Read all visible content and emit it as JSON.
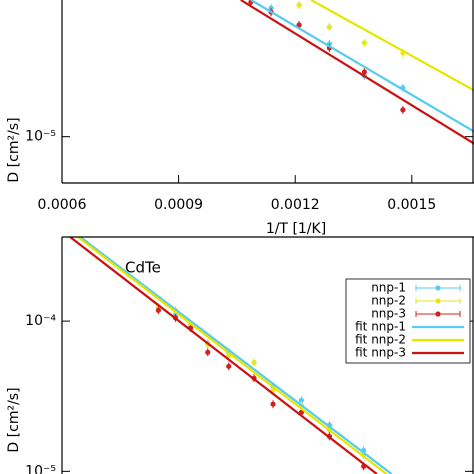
{
  "chart_data": [
    {
      "type": "scatter",
      "ylabel": "D [cm²/s]",
      "xlabel": "1/T [1/K]",
      "log_y": true,
      "xlim": [
        0.0006,
        0.00166
      ],
      "xticks": [
        0.0006,
        0.0009,
        0.0012,
        0.0015
      ],
      "ylim": [
        4.9e-06,
        8.2e-05
      ],
      "yticks": [
        {
          "value": 1e-05,
          "label": "10⁻⁵"
        }
      ],
      "series": [
        {
          "name": "nnp-1",
          "mode": "points",
          "color": "#5bc8f0",
          "x": [
            0.001138,
            0.00121,
            0.001288,
            0.001378,
            0.001477
          ],
          "values": [
            7.24e-05,
            5.58e-05,
            4.17e-05,
            2.55e-05,
            2.12e-05
          ]
        },
        {
          "name": "nnp-2",
          "mode": "points",
          "color": "#e6e620",
          "x": [
            0.00121,
            0.001288,
            0.001378,
            0.001477
          ],
          "values": [
            7.59e-05,
            5.41e-05,
            4.24e-05,
            3.63e-05
          ]
        },
        {
          "name": "nnp-3",
          "mode": "points",
          "color": "#d42020",
          "x": [
            0.001086,
            0.001138,
            0.00121,
            0.001288,
            0.001378,
            0.001477
          ],
          "values": [
            7.94e-05,
            6.81e-05,
            5.58e-05,
            3.92e-05,
            2.71e-05,
            1.51e-05
          ]
        },
        {
          "name": "fit nnp-1",
          "mode": "line",
          "color": "#55ccee",
          "x": [
            0.001086,
            0.001666
          ],
          "values": [
            8.2e-05,
            1.06e-05
          ]
        },
        {
          "name": "fit nnp-2",
          "mode": "line",
          "color": "#e6e600",
          "x": [
            0.001241,
            0.001666
          ],
          "values": [
            8.2e-05,
            2e-05
          ]
        },
        {
          "name": "fit nnp-3",
          "mode": "line",
          "color": "#cc1111",
          "x": [
            0.00106,
            0.001666
          ],
          "values": [
            8.2e-05,
            8.8e-06
          ]
        }
      ]
    },
    {
      "type": "scatter",
      "title": "CdTe",
      "ylabel": "D [cm²/s]",
      "log_y": true,
      "legend": "top right",
      "xlim": [
        0.0006,
        0.00166
      ],
      "ylim": [
        9.6e-06,
        0.000363
      ],
      "yticks": [
        {
          "value": 0.0001,
          "label": "10⁻⁴"
        },
        {
          "value": 1e-05,
          "label": "10⁻⁵"
        }
      ],
      "series": [
        {
          "name": "nnp-1",
          "mode": "points",
          "color": "#5bc8f0",
          "x": [
            0.000848,
            0.000892,
            0.000931,
            0.000975,
            0.001029,
            0.001094,
            0.001143,
            0.001216,
            0.001288,
            0.001376
          ],
          "values": [
            0.000124,
            0.00011,
            9.3e-05,
            7.1e-05,
            6.2e-05,
            5.3e-05,
            3.7e-05,
            2.97e-05,
            2.03e-05,
            1.38e-05
          ]
        },
        {
          "name": "nnp-2",
          "mode": "points",
          "color": "#e6e620",
          "x": [
            0.000848,
            0.000892,
            0.000931,
            0.000975,
            0.001029,
            0.001094,
            0.001143,
            0.001216,
            0.001288,
            0.001376
          ],
          "values": [
            0.000124,
            0.000118,
            9.55e-05,
            7e-05,
            5.9e-05,
            5.3e-05,
            3.47e-05,
            2.75e-05,
            1.88e-05,
            1.28e-05
          ]
        },
        {
          "name": "nnp-3",
          "mode": "points",
          "color": "#d42020",
          "x": [
            0.000848,
            0.000892,
            0.000931,
            0.000975,
            0.001029,
            0.001094,
            0.001143,
            0.001216,
            0.001288,
            0.001376
          ],
          "values": [
            0.000118,
            0.000105,
            8.98e-05,
            6.2e-05,
            5e-05,
            4.17e-05,
            2.8e-05,
            2.47e-05,
            1.71e-05,
            1.08e-05
          ]
        },
        {
          "name": "fit nnp-1",
          "mode": "line",
          "color": "#55ccee",
          "x": [
            0.000647,
            0.001448
          ],
          "values": [
            0.000363,
            9.6e-06
          ]
        },
        {
          "name": "fit nnp-2",
          "mode": "line",
          "color": "#e6e600",
          "x": [
            0.000641,
            0.001435
          ],
          "values": [
            0.000363,
            9.6e-06
          ]
        },
        {
          "name": "fit nnp-3",
          "mode": "line",
          "color": "#cc1111",
          "x": [
            0.000621,
            0.00141
          ],
          "values": [
            0.000363,
            9.6e-06
          ]
        }
      ]
    }
  ]
}
